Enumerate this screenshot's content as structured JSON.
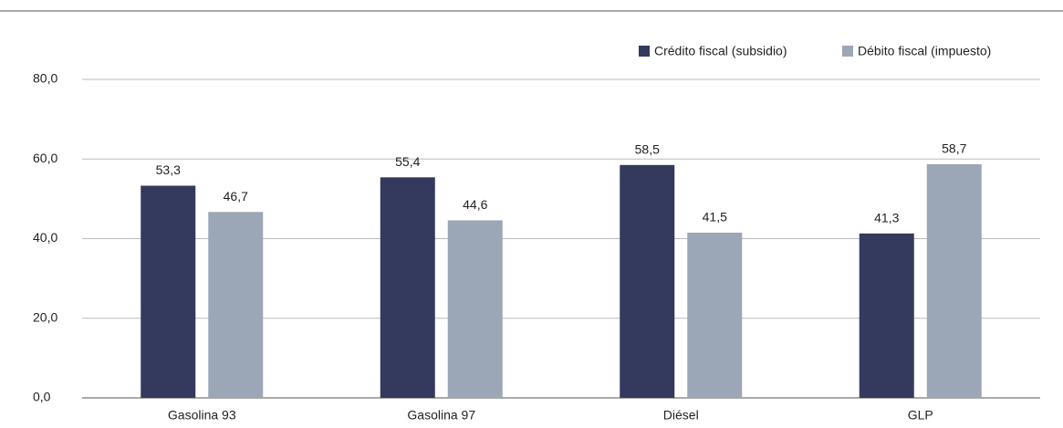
{
  "chart_data": {
    "type": "bar",
    "categories": [
      "Gasolina 93",
      "Gasolina 97",
      "Diésel",
      "GLP"
    ],
    "series": [
      {
        "name": "Crédito fiscal (subsidio)",
        "color": "#333a5e",
        "values": [
          53.3,
          55.4,
          58.5,
          41.3
        ],
        "value_labels": [
          "53,3",
          "55,4",
          "58,5",
          "41,3"
        ]
      },
      {
        "name": "Débito fiscal (impuesto)",
        "color": "#9ba6b6",
        "values": [
          46.7,
          44.6,
          41.5,
          58.7
        ],
        "value_labels": [
          "46,7",
          "44,6",
          "41,5",
          "58,7"
        ]
      }
    ],
    "ylim": [
      0,
      80
    ],
    "yticks": [
      {
        "value": 0,
        "label": "0,0"
      },
      {
        "value": 20,
        "label": "20,0"
      },
      {
        "value": 40,
        "label": "40,0"
      },
      {
        "value": 60,
        "label": "60,0"
      },
      {
        "value": 80,
        "label": "80,0"
      }
    ],
    "grid": true,
    "legend": "top-right"
  }
}
